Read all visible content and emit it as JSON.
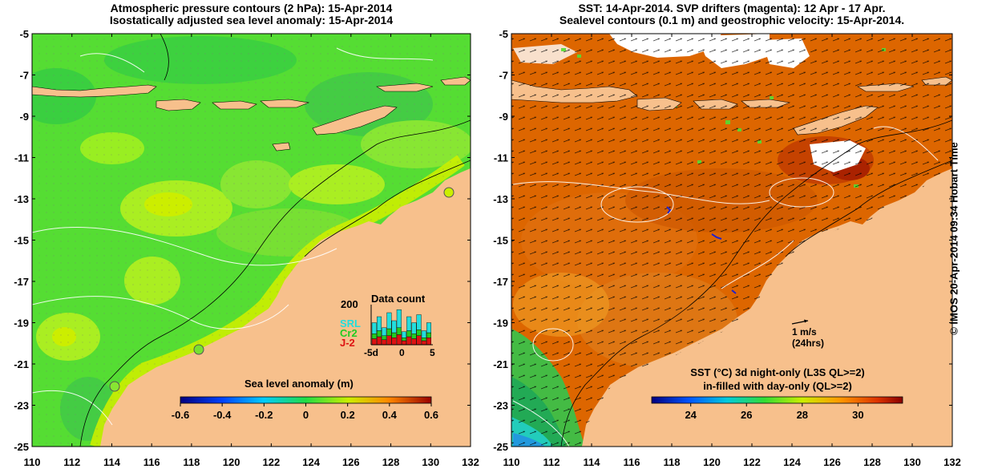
{
  "left_panel": {
    "title_line1": "Atmospheric pressure contours (2 hPa): 15-Apr-2014",
    "title_line2": "Isostatically adjusted sea level anomaly: 15-Apr-2014",
    "lat_ticks": [
      "-5",
      "-7",
      "-9",
      "-11",
      "-13",
      "-15",
      "-17",
      "-19",
      "-21",
      "-23",
      "-25"
    ],
    "lon_ticks": [
      "110",
      "112",
      "114",
      "116",
      "118",
      "120",
      "122",
      "124",
      "126",
      "128",
      "130",
      "132"
    ],
    "colorbar": {
      "title": "Sea level anomaly (m)",
      "ticks": [
        "-0.6",
        "-0.4",
        "-0.2",
        "0",
        "0.2",
        "0.4",
        "0.6"
      ],
      "range": [
        -0.6,
        0.6
      ]
    },
    "data_count": {
      "title": "Data count",
      "y_tick": "200",
      "x_ticks": [
        "-5d",
        "0",
        "5"
      ],
      "legend": [
        {
          "label": "SRL",
          "color": "#22dddd"
        },
        {
          "label": "Cr2",
          "color": "#22cc22"
        },
        {
          "label": "J-2",
          "color": "#dd1111"
        }
      ],
      "bars": [
        {
          "j2": 30,
          "cr2": 25,
          "srl": 55
        },
        {
          "j2": 40,
          "cr2": 30,
          "srl": 70
        },
        {
          "j2": 25,
          "cr2": 20,
          "srl": 40
        },
        {
          "j2": 45,
          "cr2": 35,
          "srl": 80
        },
        {
          "j2": 35,
          "cr2": 25,
          "srl": 60
        },
        {
          "j2": 50,
          "cr2": 35,
          "srl": 90
        },
        {
          "j2": 20,
          "cr2": 15,
          "srl": 30
        },
        {
          "j2": 40,
          "cr2": 30,
          "srl": 70
        },
        {
          "j2": 30,
          "cr2": 25,
          "srl": 55
        },
        {
          "j2": 45,
          "cr2": 30,
          "srl": 75
        },
        {
          "j2": 20,
          "cr2": 15,
          "srl": 35
        },
        {
          "j2": 35,
          "cr2": 25,
          "srl": 50
        }
      ],
      "y_max": 200
    }
  },
  "right_panel": {
    "title_line1": "SST: 14-Apr-2014. SVP drifters (magenta): 12 Apr - 17 Apr.",
    "title_line2": "Sealevel contours (0.1 m) and geostrophic velocity: 15-Apr-2014.",
    "lat_ticks": [
      "-5",
      "-7",
      "-9",
      "-11",
      "-13",
      "-15",
      "-17",
      "-19",
      "-21",
      "-23",
      "-25"
    ],
    "lon_ticks": [
      "110",
      "112",
      "114",
      "116",
      "118",
      "120",
      "122",
      "124",
      "126",
      "128",
      "130",
      "132"
    ],
    "scale_arrow": {
      "label": "1 m/s",
      "sublabel": "(24hrs)"
    },
    "colorbar": {
      "title_line1": "SST (°C)  3d night-only (L3S QL>=2)",
      "title_line2": "in-filled with day-only (QL>=2)",
      "ticks": [
        "24",
        "26",
        "28",
        "30"
      ],
      "range": [
        22.6,
        31.6
      ]
    }
  },
  "stamp": "© IMOS 20-Apr-2014 09:34 Hobart Time",
  "colors": {
    "land": "#f7c08c",
    "ocean_green": "#55dd33",
    "ocean_light": "#88ee22",
    "sst_orange": "#dd6600"
  }
}
